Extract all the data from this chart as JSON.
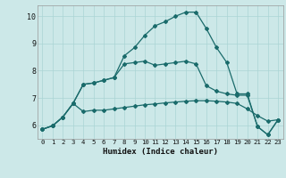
{
  "title": "",
  "xlabel": "Humidex (Indice chaleur)",
  "bg_color": "#cce8e8",
  "line_color": "#1a6b6b",
  "grid_color": "#aad4d4",
  "xlim": [
    -0.5,
    23.5
  ],
  "ylim": [
    5.5,
    10.4
  ],
  "xticks": [
    0,
    1,
    2,
    3,
    4,
    5,
    6,
    7,
    8,
    9,
    10,
    11,
    12,
    13,
    14,
    15,
    16,
    17,
    18,
    19,
    20,
    21,
    22,
    23
  ],
  "yticks": [
    6,
    7,
    8,
    9,
    10
  ],
  "line1_x": [
    0,
    1,
    2,
    3,
    4,
    5,
    6,
    7,
    8,
    9,
    10,
    11,
    12,
    13,
    14,
    15,
    16,
    17,
    18,
    19,
    20,
    21,
    22,
    23
  ],
  "line1_y": [
    5.85,
    5.98,
    6.3,
    6.8,
    6.5,
    6.55,
    6.55,
    6.6,
    6.65,
    6.7,
    6.75,
    6.78,
    6.82,
    6.85,
    6.88,
    6.9,
    6.9,
    6.88,
    6.85,
    6.8,
    6.6,
    6.35,
    6.15,
    6.2
  ],
  "line2_x": [
    0,
    1,
    2,
    3,
    4,
    5,
    6,
    7,
    8,
    9,
    10,
    11,
    12,
    13,
    14,
    15,
    16,
    17,
    18,
    19,
    20,
    21,
    22,
    23
  ],
  "line2_y": [
    5.85,
    5.98,
    6.3,
    6.8,
    7.5,
    7.55,
    7.65,
    7.75,
    8.25,
    8.3,
    8.35,
    8.2,
    8.25,
    8.3,
    8.35,
    8.25,
    7.45,
    7.25,
    7.15,
    7.1,
    7.1,
    5.95,
    5.65,
    6.2
  ],
  "line3_x": [
    0,
    1,
    2,
    3,
    4,
    5,
    6,
    7,
    8,
    9,
    10,
    11,
    12,
    13,
    14,
    15,
    16,
    17,
    18,
    19,
    20,
    21,
    22,
    23
  ],
  "line3_y": [
    5.85,
    5.98,
    6.3,
    6.8,
    7.5,
    7.55,
    7.65,
    7.75,
    8.55,
    8.85,
    9.3,
    9.65,
    9.8,
    10.0,
    10.15,
    10.15,
    9.55,
    8.85,
    8.3,
    7.15,
    7.15,
    5.95,
    5.65,
    6.2
  ]
}
